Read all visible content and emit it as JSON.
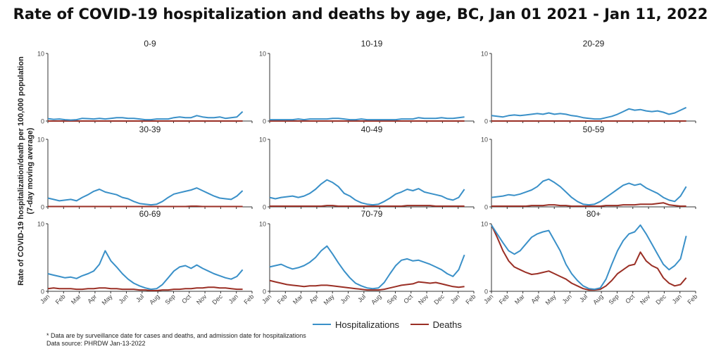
{
  "chart_data": {
    "type": "line",
    "title": "Rate of COVID-19 hospitalization and deaths by age, BC, Jan 01 2021 - Jan 11, 2022",
    "ylabel_line1": "Rate of COVID-19 hospitalization/death per 100,000 population",
    "ylabel_line2": "(7-day moving average)",
    "ylim": [
      0,
      10
    ],
    "yticks": [
      0,
      10
    ],
    "x_tick_labels": [
      "Jan",
      "Feb",
      "Mar",
      "Apr",
      "May",
      "Jun",
      "Jul",
      "Aug",
      "Sep",
      "Oct",
      "Nov",
      "Dec",
      "Jan",
      "Feb"
    ],
    "x_month_index": [
      0,
      1,
      2,
      3,
      4,
      5,
      6,
      7,
      8,
      9,
      10,
      11,
      12,
      13
    ],
    "colors": {
      "hospitalizations": "#3a90c8",
      "deaths": "#9a2f25"
    },
    "legend": [
      "Hospitalizations",
      "Deaths"
    ],
    "panels": [
      {
        "title": "0-9",
        "hosp": [
          0.35,
          0.25,
          0.3,
          0.2,
          0.15,
          0.2,
          0.4,
          0.35,
          0.3,
          0.4,
          0.3,
          0.4,
          0.5,
          0.5,
          0.4,
          0.4,
          0.3,
          0.2,
          0.2,
          0.3,
          0.3,
          0.3,
          0.5,
          0.6,
          0.5,
          0.5,
          0.8,
          0.6,
          0.5,
          0.5,
          0.6,
          0.4,
          0.5,
          0.6,
          1.4
        ],
        "death": [
          0.0,
          0.0,
          0.0,
          0.0,
          0.0,
          0.0,
          0.0,
          0.0,
          0.0,
          0.0,
          0.0,
          0.0,
          0.0,
          0.0,
          0.0,
          0.0,
          0.0,
          0.0,
          0.0,
          0.0,
          0.0,
          0.0,
          0.0,
          0.0,
          0.0,
          0.0,
          0.0,
          0.0,
          0.0,
          0.0,
          0.0,
          0.0,
          0.0,
          0.0,
          0.0
        ]
      },
      {
        "title": "10-19",
        "hosp": [
          0.2,
          0.2,
          0.2,
          0.2,
          0.2,
          0.3,
          0.2,
          0.3,
          0.3,
          0.3,
          0.3,
          0.4,
          0.4,
          0.3,
          0.2,
          0.2,
          0.3,
          0.2,
          0.2,
          0.2,
          0.2,
          0.2,
          0.2,
          0.3,
          0.3,
          0.3,
          0.5,
          0.4,
          0.4,
          0.4,
          0.5,
          0.4,
          0.4,
          0.5,
          0.6
        ],
        "death": [
          0.0,
          0.0,
          0.0,
          0.0,
          0.0,
          0.0,
          0.0,
          0.0,
          0.0,
          0.0,
          0.0,
          0.0,
          0.0,
          0.0,
          0.0,
          0.0,
          0.0,
          0.0,
          0.0,
          0.0,
          0.0,
          0.0,
          0.0,
          0.0,
          0.0,
          0.0,
          0.0,
          0.0,
          0.0,
          0.0,
          0.0,
          0.0,
          0.0,
          0.0,
          0.0
        ]
      },
      {
        "title": "20-29",
        "hosp": [
          0.8,
          0.7,
          0.6,
          0.8,
          0.9,
          0.8,
          0.9,
          1.0,
          1.1,
          1.0,
          1.2,
          1.0,
          1.1,
          1.0,
          0.8,
          0.7,
          0.5,
          0.4,
          0.3,
          0.3,
          0.5,
          0.7,
          1.0,
          1.4,
          1.8,
          1.6,
          1.7,
          1.5,
          1.4,
          1.5,
          1.3,
          1.0,
          1.2,
          1.6,
          2.0
        ],
        "death": [
          0.0,
          0.0,
          0.0,
          0.0,
          0.0,
          0.0,
          0.0,
          0.0,
          0.0,
          0.0,
          0.0,
          0.0,
          0.0,
          0.0,
          0.0,
          0.0,
          0.0,
          0.0,
          0.0,
          0.0,
          0.0,
          0.0,
          0.0,
          0.0,
          0.0,
          0.0,
          0.0,
          0.0,
          0.0,
          0.0,
          0.0,
          0.0,
          0.0,
          0.0,
          0.0
        ]
      },
      {
        "title": "30-39",
        "hosp": [
          1.3,
          1.1,
          0.9,
          1.0,
          1.1,
          0.9,
          1.4,
          1.8,
          2.3,
          2.6,
          2.2,
          2.0,
          1.8,
          1.4,
          1.2,
          0.8,
          0.5,
          0.4,
          0.3,
          0.4,
          0.8,
          1.4,
          1.9,
          2.1,
          2.3,
          2.5,
          2.8,
          2.4,
          2.0,
          1.6,
          1.3,
          1.2,
          1.1,
          1.6,
          2.4
        ],
        "death": [
          0.05,
          0.05,
          0.05,
          0.05,
          0.05,
          0.05,
          0.05,
          0.05,
          0.05,
          0.05,
          0.05,
          0.05,
          0.05,
          0.05,
          0.05,
          0.05,
          0.05,
          0.05,
          0.05,
          0.05,
          0.05,
          0.05,
          0.05,
          0.05,
          0.05,
          0.1,
          0.1,
          0.05,
          0.05,
          0.05,
          0.05,
          0.05,
          0.05,
          0.05,
          0.05
        ]
      },
      {
        "title": "40-49",
        "hosp": [
          1.4,
          1.2,
          1.4,
          1.5,
          1.6,
          1.4,
          1.6,
          2.0,
          2.6,
          3.4,
          4.0,
          3.6,
          3.0,
          2.0,
          1.6,
          1.0,
          0.6,
          0.4,
          0.3,
          0.4,
          0.8,
          1.3,
          1.9,
          2.2,
          2.6,
          2.4,
          2.7,
          2.2,
          2.0,
          1.8,
          1.6,
          1.2,
          1.0,
          1.4,
          2.6
        ],
        "death": [
          0.1,
          0.1,
          0.1,
          0.1,
          0.1,
          0.1,
          0.1,
          0.1,
          0.1,
          0.1,
          0.2,
          0.2,
          0.1,
          0.1,
          0.1,
          0.1,
          0.1,
          0.1,
          0.1,
          0.1,
          0.1,
          0.1,
          0.1,
          0.1,
          0.2,
          0.2,
          0.2,
          0.2,
          0.2,
          0.1,
          0.1,
          0.1,
          0.1,
          0.1,
          0.1
        ]
      },
      {
        "title": "50-59",
        "hosp": [
          1.4,
          1.5,
          1.6,
          1.8,
          1.7,
          1.9,
          2.2,
          2.5,
          3.0,
          3.8,
          4.1,
          3.6,
          3.0,
          2.2,
          1.4,
          0.8,
          0.4,
          0.3,
          0.4,
          0.8,
          1.4,
          2.0,
          2.6,
          3.2,
          3.5,
          3.2,
          3.4,
          2.8,
          2.4,
          2.0,
          1.4,
          1.0,
          0.8,
          1.6,
          3.0
        ],
        "death": [
          0.1,
          0.1,
          0.1,
          0.1,
          0.1,
          0.1,
          0.1,
          0.2,
          0.2,
          0.2,
          0.3,
          0.3,
          0.2,
          0.2,
          0.1,
          0.1,
          0.1,
          0.1,
          0.1,
          0.1,
          0.2,
          0.2,
          0.2,
          0.3,
          0.3,
          0.3,
          0.4,
          0.4,
          0.4,
          0.5,
          0.6,
          0.3,
          0.2,
          0.1,
          0.1
        ]
      },
      {
        "title": "60-69",
        "hosp": [
          2.6,
          2.4,
          2.2,
          2.0,
          2.1,
          1.9,
          2.3,
          2.6,
          3.0,
          4.0,
          6.0,
          4.5,
          3.6,
          2.6,
          1.8,
          1.2,
          0.8,
          0.5,
          0.3,
          0.4,
          1.0,
          2.0,
          3.0,
          3.6,
          3.8,
          3.4,
          3.9,
          3.4,
          3.0,
          2.6,
          2.3,
          2.0,
          1.8,
          2.2,
          3.2
        ],
        "death": [
          0.4,
          0.5,
          0.4,
          0.4,
          0.4,
          0.3,
          0.3,
          0.4,
          0.4,
          0.5,
          0.5,
          0.4,
          0.4,
          0.3,
          0.3,
          0.3,
          0.2,
          0.2,
          0.1,
          0.1,
          0.2,
          0.2,
          0.3,
          0.3,
          0.4,
          0.4,
          0.5,
          0.5,
          0.6,
          0.6,
          0.5,
          0.5,
          0.4,
          0.3,
          0.3
        ]
      },
      {
        "title": "70-79",
        "hosp": [
          3.6,
          3.8,
          4.0,
          3.6,
          3.3,
          3.5,
          3.8,
          4.3,
          5.0,
          6.0,
          6.7,
          5.5,
          4.2,
          3.0,
          2.0,
          1.2,
          0.8,
          0.5,
          0.4,
          0.5,
          1.3,
          2.6,
          3.8,
          4.6,
          4.8,
          4.5,
          4.6,
          4.3,
          4.0,
          3.6,
          3.2,
          2.6,
          2.2,
          3.2,
          5.4
        ],
        "death": [
          1.6,
          1.4,
          1.2,
          1.0,
          0.9,
          0.8,
          0.7,
          0.8,
          0.8,
          0.9,
          0.9,
          0.8,
          0.7,
          0.6,
          0.5,
          0.4,
          0.3,
          0.2,
          0.2,
          0.2,
          0.3,
          0.5,
          0.7,
          0.9,
          1.0,
          1.1,
          1.4,
          1.3,
          1.2,
          1.3,
          1.1,
          0.9,
          0.7,
          0.6,
          0.7
        ]
      },
      {
        "title": "80+",
        "hosp": [
          9.8,
          8.5,
          7.2,
          6.0,
          5.5,
          6.0,
          7.0,
          8.0,
          8.5,
          8.8,
          9.0,
          7.5,
          6.0,
          4.0,
          2.6,
          1.6,
          0.8,
          0.4,
          0.3,
          0.5,
          1.8,
          4.0,
          6.0,
          7.5,
          8.5,
          8.8,
          9.8,
          8.5,
          7.0,
          5.5,
          4.0,
          3.2,
          3.8,
          4.8,
          8.2
        ],
        "death": [
          9.8,
          8.0,
          6.0,
          4.5,
          3.6,
          3.2,
          2.8,
          2.5,
          2.6,
          2.8,
          3.0,
          2.6,
          2.2,
          1.8,
          1.2,
          0.8,
          0.4,
          0.2,
          0.2,
          0.3,
          0.8,
          1.6,
          2.6,
          3.2,
          3.8,
          4.0,
          5.8,
          4.5,
          3.8,
          3.4,
          2.0,
          1.2,
          0.8,
          1.0,
          2.0
        ]
      }
    ],
    "footnote": [
      "* Data are by surveillance date for cases and deaths, and admission date for hospitalizations",
      "Data source: PHRDW Jan-13-2022"
    ]
  }
}
